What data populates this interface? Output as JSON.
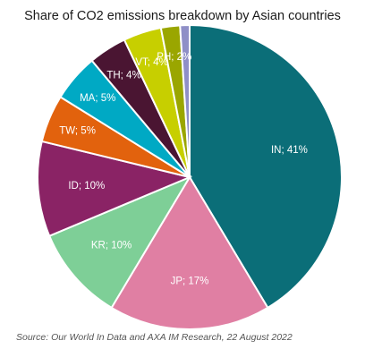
{
  "chart_data": {
    "type": "pie",
    "title": "Share of CO2 emissions breakdown by Asian countries",
    "slices": [
      {
        "name": "IN",
        "label": "IN; 41%",
        "value": 41,
        "color": "#0b6e78"
      },
      {
        "name": "JP",
        "label": "JP; 17%",
        "value": 17,
        "color": "#e07fa3"
      },
      {
        "name": "KR",
        "label": "KR; 10%",
        "value": 10,
        "color": "#7ecf97"
      },
      {
        "name": "ID",
        "label": "ID; 10%",
        "value": 10,
        "color": "#8a2365"
      },
      {
        "name": "TW",
        "label": "TW; 5%",
        "value": 5,
        "color": "#e2620d"
      },
      {
        "name": "MA",
        "label": "MA; 5%",
        "value": 5,
        "color": "#00a9c4"
      },
      {
        "name": "TH",
        "label": "TH; 4%",
        "value": 4,
        "color": "#4a1532"
      },
      {
        "name": "VT",
        "label": "VT; 4%",
        "value": 4,
        "color": "#c7cf00"
      },
      {
        "name": "PH",
        "label": "PH; 2%",
        "value": 2,
        "color": "#9aa600"
      },
      {
        "name": "",
        "label": "",
        "value": 1,
        "color": "#8f8fc7"
      }
    ]
  },
  "source": "Source: Our World In Data and AXA IM Research, 22 August 2022"
}
